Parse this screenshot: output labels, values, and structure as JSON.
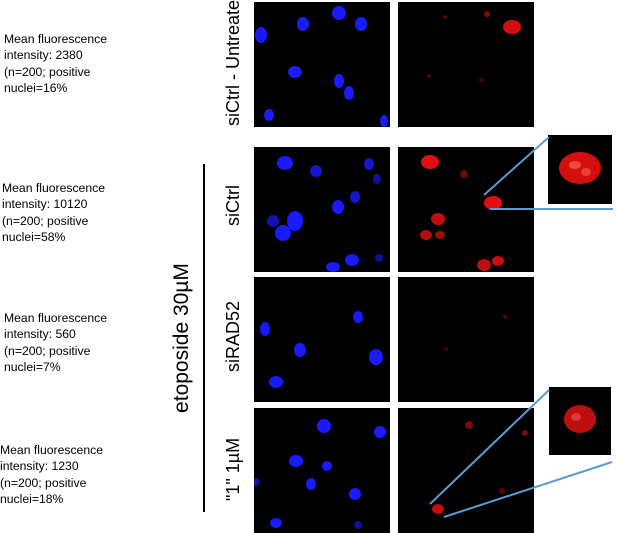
{
  "rows": [
    {
      "condition": "siCtrl - Untreated",
      "caption": "Mean fluorescence\nintensity: 2380\n(n=200; positive\nnuclei=16%"
    },
    {
      "condition": "siCtrl",
      "caption": "Mean fluorescence\nintensity: 10120\n(n=200; positive\nnuclei=58%"
    },
    {
      "condition": "siRAD52",
      "caption": "Mean fluorescence\nintensity: 560\n(n=200; positive\nnuclei=7%"
    },
    {
      "condition": "\"1\" 1µM",
      "caption": "Mean fluorescence\nintensity: 1230\n(n=200; positive\nnuclei=18%"
    }
  ],
  "treatment_group_label": "etoposide 30µM",
  "colors": {
    "background": "#ffffff",
    "panel_background": "#000000",
    "nuclei_blue": "#1a1aff",
    "foci_red": "#e01010",
    "zoom_line": "#5b9bd5"
  }
}
